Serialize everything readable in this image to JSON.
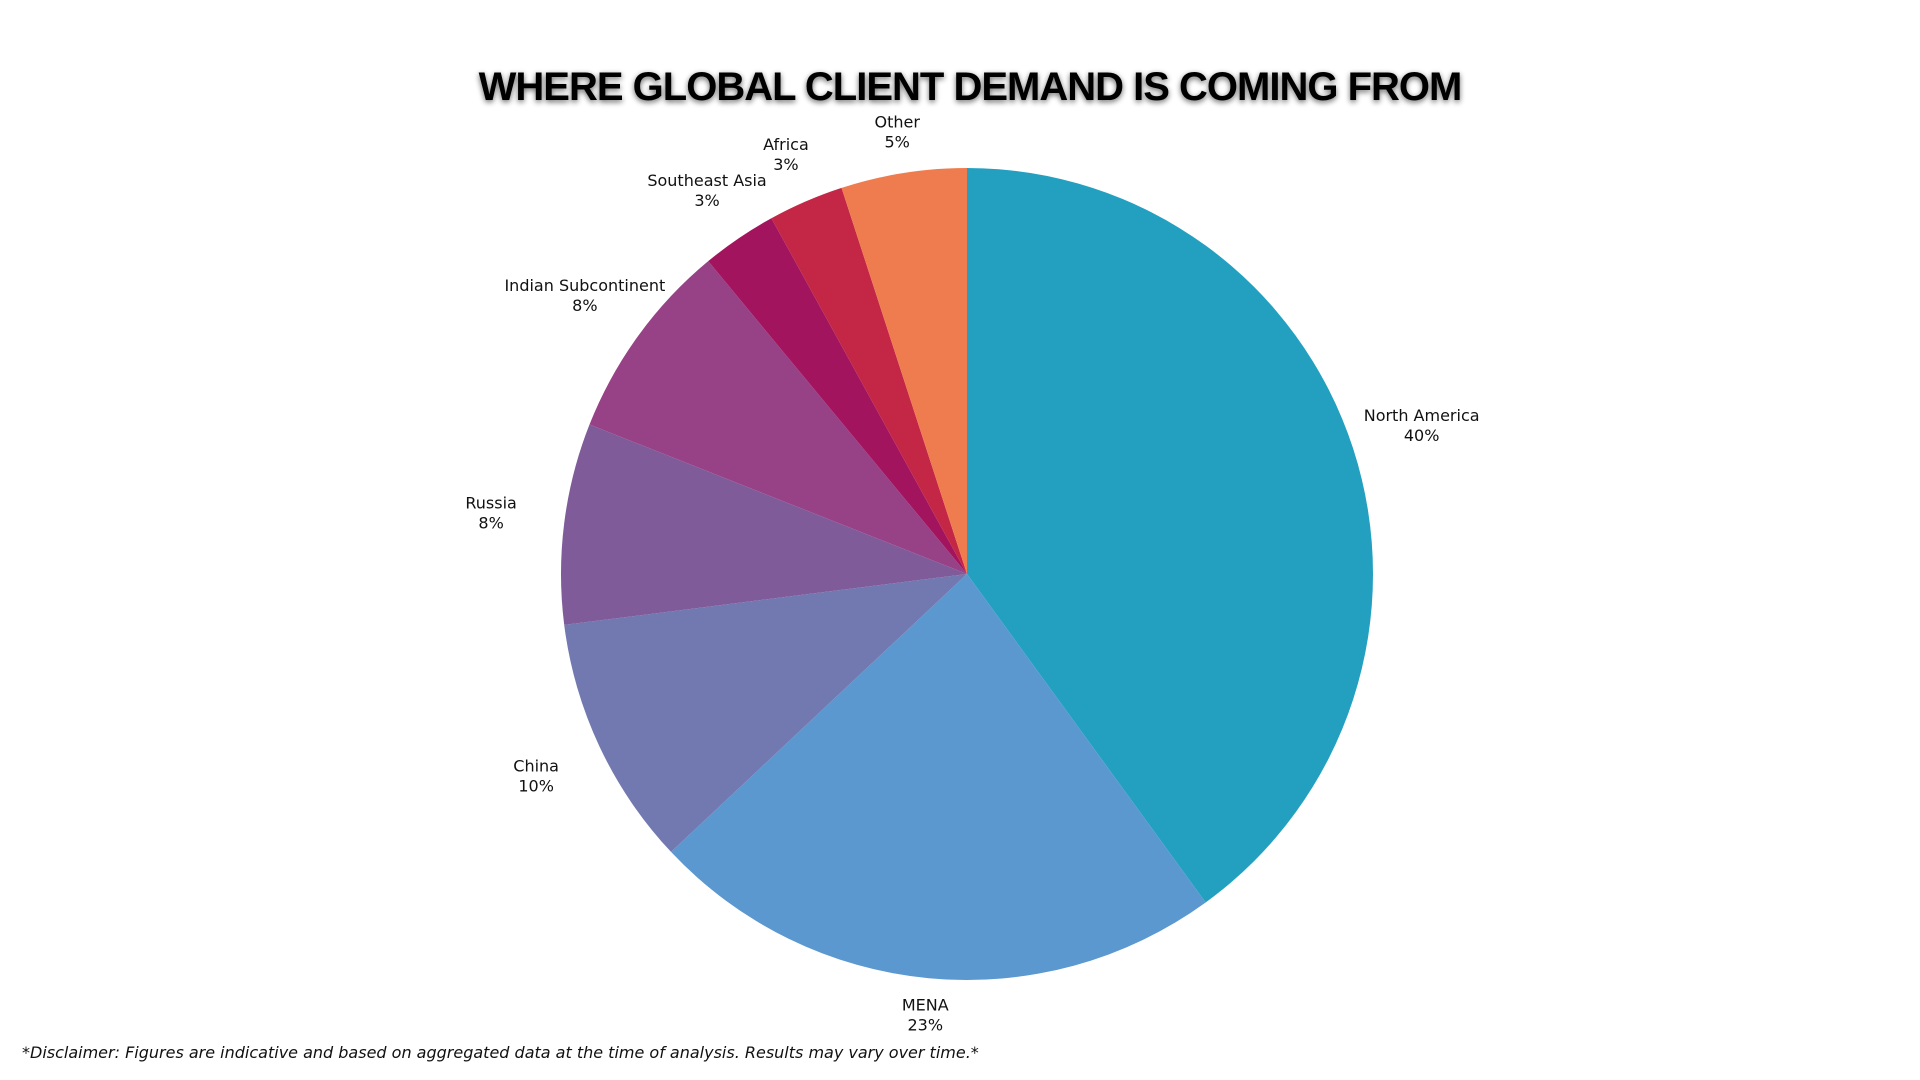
{
  "chart_data": {
    "type": "pie",
    "title": "WHERE GLOBAL CLIENT DEMAND IS COMING FROM",
    "categories": [
      "North America",
      "MENA",
      "China",
      "Russia",
      "Indian Subcontinent",
      "Southeast Asia",
      "Africa",
      "Other"
    ],
    "values": [
      40,
      23,
      10,
      8,
      8,
      3,
      3,
      5
    ],
    "value_labels": [
      "40%",
      "23%",
      "10%",
      "8%",
      "8%",
      "3%",
      "3%",
      "5%"
    ],
    "colors": [
      "#23a0c0",
      "#5b98cf",
      "#7279b0",
      "#7f5c99",
      "#974286",
      "#a2155e",
      "#c42645",
      "#ef7c4f"
    ],
    "footnote": "*Disclaimer: Figures are indicative and based on aggregated data at the time of analysis. Results may vary over time.*"
  }
}
